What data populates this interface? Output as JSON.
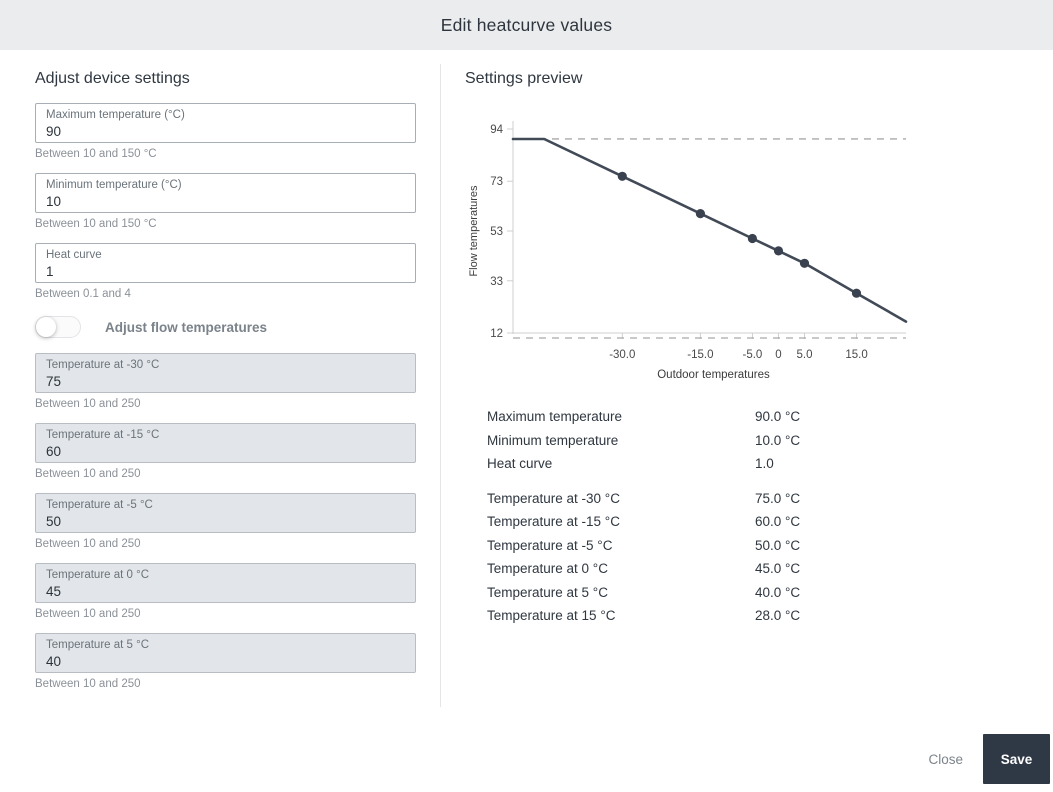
{
  "dialog": {
    "title": "Edit heatcurve values"
  },
  "colors": {
    "header_bg": "#ebeced",
    "save_button_bg": "#2f3845",
    "disabled_input_bg": "#e2e6ea",
    "line": "#414a56",
    "marker": "#39424e",
    "guide": "#a9a9a9",
    "axis": "#cfcfcf",
    "tick_text": "#4a4a4a"
  },
  "left": {
    "title": "Adjust device settings",
    "fields": [
      {
        "label": "Maximum temperature (°C)",
        "value": "90",
        "helper": "Between 10 and 150 °C",
        "disabled": false
      },
      {
        "label": "Minimum temperature (°C)",
        "value": "10",
        "helper": "Between 10 and 150 °C",
        "disabled": false
      },
      {
        "label": "Heat curve",
        "value": "1",
        "helper": "Between 0.1 and 4",
        "disabled": false
      }
    ],
    "toggle": {
      "label": "Adjust flow temperatures",
      "state": "off"
    },
    "flow_fields": [
      {
        "label": "Temperature at -30 °C",
        "value": "75",
        "helper": "Between 10 and 250",
        "disabled": true
      },
      {
        "label": "Temperature at -15 °C",
        "value": "60",
        "helper": "Between 10 and 250",
        "disabled": true
      },
      {
        "label": "Temperature at -5 °C",
        "value": "50",
        "helper": "Between 10 and 250",
        "disabled": true
      },
      {
        "label": "Temperature at 0 °C",
        "value": "45",
        "helper": "Between 10 and 250",
        "disabled": true
      },
      {
        "label": "Temperature at 5 °C",
        "value": "40",
        "helper": "Between 10 and 250",
        "disabled": true
      }
    ]
  },
  "right": {
    "title": "Settings preview",
    "summary": {
      "rows_main": [
        {
          "label": "Maximum temperature",
          "value": "90.0 °C"
        },
        {
          "label": "Minimum temperature",
          "value": "10.0 °C"
        },
        {
          "label": "Heat curve",
          "value": "1.0"
        }
      ],
      "rows_flow": [
        {
          "label": "Temperature at -30 °C",
          "value": "75.0 °C"
        },
        {
          "label": "Temperature at -15 °C",
          "value": "60.0 °C"
        },
        {
          "label": "Temperature at -5 °C",
          "value": "50.0 °C"
        },
        {
          "label": "Temperature at 0 °C",
          "value": "45.0 °C"
        },
        {
          "label": "Temperature at 5 °C",
          "value": "40.0 °C"
        },
        {
          "label": "Temperature at 15 °C",
          "value": "28.0 °C"
        }
      ]
    }
  },
  "chart_data": {
    "type": "line",
    "title": "",
    "xlabel": "Outdoor temperatures",
    "ylabel": "Flow temperatures",
    "xlim": [
      -51,
      24.5
    ],
    "ylim": [
      12,
      94
    ],
    "grid": false,
    "y_ticks": [
      {
        "v": 94,
        "label": "94"
      },
      {
        "v": 73,
        "label": "73"
      },
      {
        "v": 53,
        "label": "53"
      },
      {
        "v": 33,
        "label": "33"
      },
      {
        "v": 12,
        "label": "12"
      }
    ],
    "x_ticks": [
      {
        "v": -30,
        "label": "-30.0"
      },
      {
        "v": -15,
        "label": "-15.0"
      },
      {
        "v": -5,
        "label": "-5.0"
      },
      {
        "v": 0,
        "label": "0"
      },
      {
        "v": 5,
        "label": "5.0"
      },
      {
        "v": 15,
        "label": "15.0"
      }
    ],
    "guide_lines": [
      {
        "y": 90,
        "style": "dashed",
        "meaning": "maximum temperature"
      },
      {
        "y": 10,
        "style": "dashed",
        "meaning": "minimum temperature"
      }
    ],
    "series": [
      {
        "name": "heatcurve",
        "points": [
          [
            -51,
            90
          ],
          [
            -45,
            90
          ],
          [
            -30,
            75
          ],
          [
            -15,
            60
          ],
          [
            -5,
            50
          ],
          [
            0,
            45
          ],
          [
            5,
            40
          ],
          [
            15,
            28
          ],
          [
            24.5,
            16.6
          ]
        ]
      }
    ],
    "markers": [
      [
        -30,
        75
      ],
      [
        -15,
        60
      ],
      [
        -5,
        50
      ],
      [
        0,
        45
      ],
      [
        5,
        40
      ],
      [
        15,
        28
      ]
    ]
  },
  "footer": {
    "close_label": "Close",
    "save_label": "Save"
  }
}
